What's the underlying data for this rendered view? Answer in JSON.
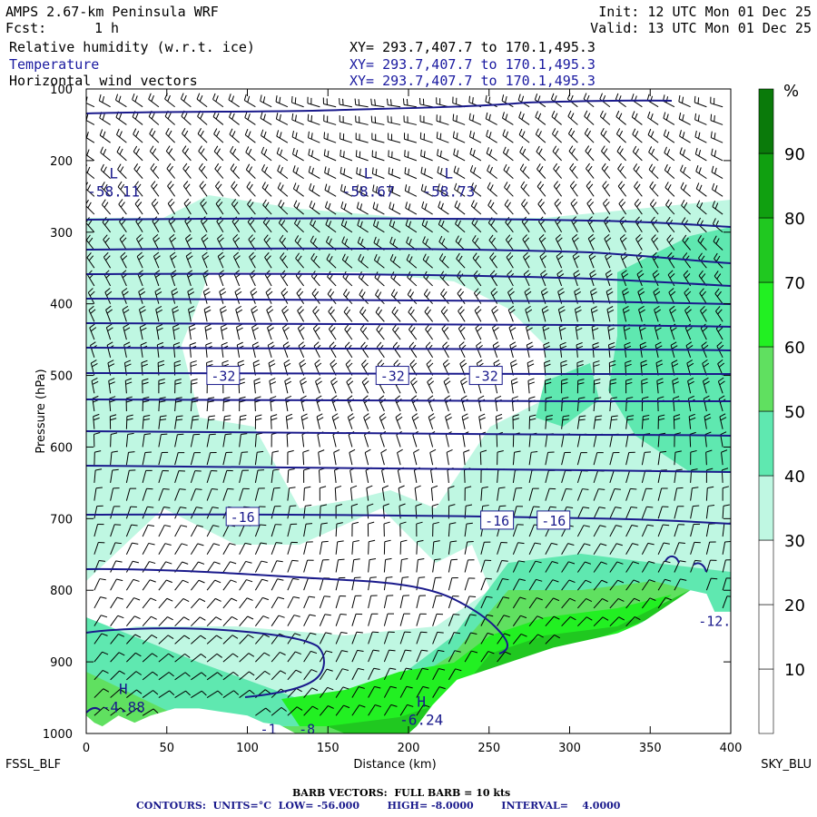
{
  "header": {
    "model_title": "AMPS 2.67-km Peninsula WRF",
    "forecast_label": "Fcst:",
    "forecast_value": "1 h",
    "init": "Init: 12 UTC Mon 01 Dec 25",
    "valid": "Valid: 13 UTC Mon 01 Dec 25",
    "fields": [
      {
        "name": "Relative humidity (w.r.t. ice)",
        "xy": "XY= 293.7,407.7 to 170.1,495.3"
      },
      {
        "name": "Temperature",
        "xy": "XY= 293.7,407.7 to 170.1,495.3"
      },
      {
        "name": "Horizontal wind vectors",
        "xy": "XY= 293.7,407.7 to 170.1,495.3"
      }
    ]
  },
  "colors": {
    "contour_blue": "#1a1a8c",
    "rh_fill": [
      "#ffffff",
      "#ffffff",
      "#ffffff",
      "#bff7e2",
      "#5fe8b0",
      "#60e060",
      "#22f022",
      "#20c820",
      "#10a010",
      "#0a7a0a"
    ],
    "terrain": "#ffffff"
  },
  "chart_data": {
    "type": "heatmap",
    "xlabel": "Distance (km)",
    "ylabel": "Pressure (hPa)",
    "xlim": [
      0,
      400
    ],
    "ylim": [
      1000,
      100
    ],
    "x_ticks": [
      0,
      50,
      100,
      150,
      200,
      250,
      300,
      350,
      400
    ],
    "y_ticks": [
      100,
      200,
      300,
      400,
      500,
      600,
      700,
      800,
      900,
      1000
    ],
    "left_endpoint": "FSSL_BLF",
    "right_endpoint": "SKY_BLU",
    "colorbar": {
      "unit": "%",
      "levels": [
        0,
        10,
        20,
        30,
        40,
        50,
        60,
        70,
        80,
        90,
        100
      ],
      "tick_labels": [
        "10",
        "20",
        "30",
        "40",
        "50",
        "60",
        "70",
        "80",
        "90"
      ]
    },
    "terrain_surface": {
      "x": [
        0,
        5,
        10,
        20,
        30,
        40,
        55,
        70,
        85,
        100,
        110,
        120,
        130,
        140,
        160,
        180,
        200,
        205,
        215,
        230,
        250,
        270,
        290,
        310,
        330,
        345,
        355,
        365,
        375,
        385,
        390,
        400
      ],
      "p": [
        975,
        985,
        990,
        975,
        985,
        975,
        965,
        965,
        970,
        975,
        985,
        988,
        1000,
        1000,
        1000,
        1000,
        1000,
        990,
        960,
        925,
        910,
        895,
        880,
        870,
        860,
        845,
        830,
        815,
        800,
        805,
        830,
        830
      ]
    },
    "temperature_contours": {
      "units": "°C",
      "low": -56,
      "high": -8,
      "interval": 4,
      "labels": [
        {
          "text": "-32",
          "x": 85,
          "p": 500
        },
        {
          "text": "-32",
          "x": 190,
          "p": 500
        },
        {
          "text": "-32",
          "x": 248,
          "p": 500
        },
        {
          "text": "-16",
          "x": 97,
          "p": 697
        },
        {
          "text": "-16",
          "x": 255,
          "p": 702
        },
        {
          "text": "-16",
          "x": 290,
          "p": 702
        }
      ],
      "lows": [
        {
          "symbol": "L",
          "value": "-58.11",
          "x": 17,
          "p": 235
        },
        {
          "symbol": "L",
          "value": "-58.67",
          "x": 175,
          "p": 235
        },
        {
          "symbol": "L",
          "value": "-58.73",
          "x": 225,
          "p": 235
        }
      ],
      "highs": [
        {
          "symbol": "H",
          "value": "-4.88",
          "x": 23,
          "p": 955
        },
        {
          "symbol": "H",
          "value": "-6.24",
          "x": 208,
          "p": 973
        }
      ],
      "edge_labels": [
        {
          "text": "-12.",
          "x": 390,
          "p": 842
        },
        {
          "text": "-1",
          "x": 113,
          "p": 993
        },
        {
          "text": "-8",
          "x": 137,
          "p": 993
        }
      ]
    }
  },
  "footer": {
    "barb": "BARB VECTORS:  FULL BARB = 10 kts",
    "contours": "CONTOURS:  UNITS=°C  LOW= -56.000        HIGH= -8.0000        INTERVAL=    4.0000"
  }
}
